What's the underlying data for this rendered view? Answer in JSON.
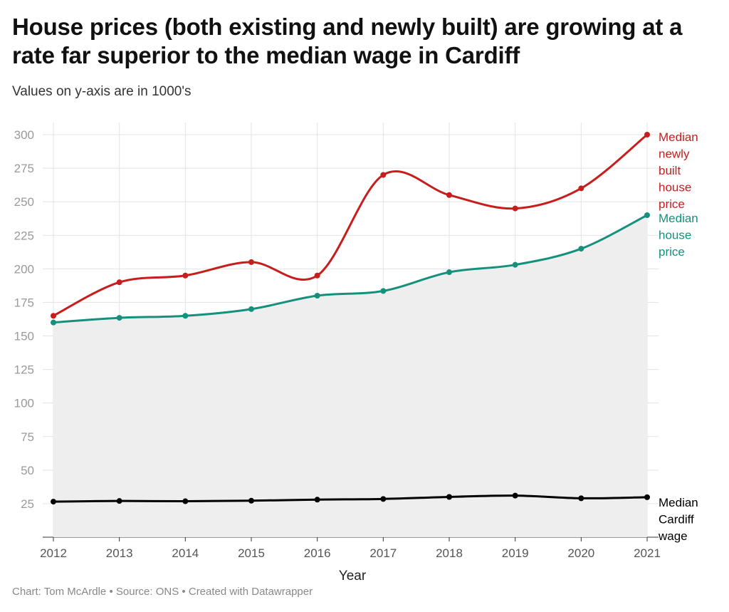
{
  "title": "House prices (both existing and newly built) are growing at a rate far superior to the median wage in Cardiff",
  "subtitle": "Values on y-axis are in 1000's",
  "footer": {
    "chart": "Chart: Tom McArdle",
    "sep1": "•",
    "source": "Source: ONS",
    "sep2": "•",
    "created": "Created with Datawrapper"
  },
  "chart_data": {
    "type": "line",
    "xlabel": "Year",
    "ylabel": "",
    "x": [
      "2012",
      "2013",
      "2014",
      "2015",
      "2016",
      "2017",
      "2018",
      "2019",
      "2020",
      "2021"
    ],
    "ylim": [
      0,
      300
    ],
    "yticks": [
      25,
      50,
      75,
      100,
      125,
      150,
      175,
      200,
      225,
      250,
      275,
      300
    ],
    "grid": true,
    "legend": "inline-right",
    "series": [
      {
        "name": "Median newly built house price",
        "label_lines": [
          "Median",
          "newly",
          "built",
          "house",
          "price"
        ],
        "color": "#c71e1d",
        "values": [
          165,
          190,
          195,
          205,
          195,
          270,
          255,
          245,
          260,
          300
        ]
      },
      {
        "name": "Median house price",
        "label_lines": [
          "Median",
          "house",
          "price"
        ],
        "color": "#15907d",
        "values": [
          160,
          163.5,
          165,
          170,
          180,
          183.5,
          197.5,
          203,
          215,
          240
        ],
        "area": true
      },
      {
        "name": "Median Cardiff wage",
        "label_lines": [
          "Median",
          "Cardiff",
          "wage"
        ],
        "color": "#000000",
        "values": [
          26.5,
          27,
          26.8,
          27.2,
          28,
          28.5,
          30,
          31,
          29,
          29.8
        ]
      }
    ]
  }
}
